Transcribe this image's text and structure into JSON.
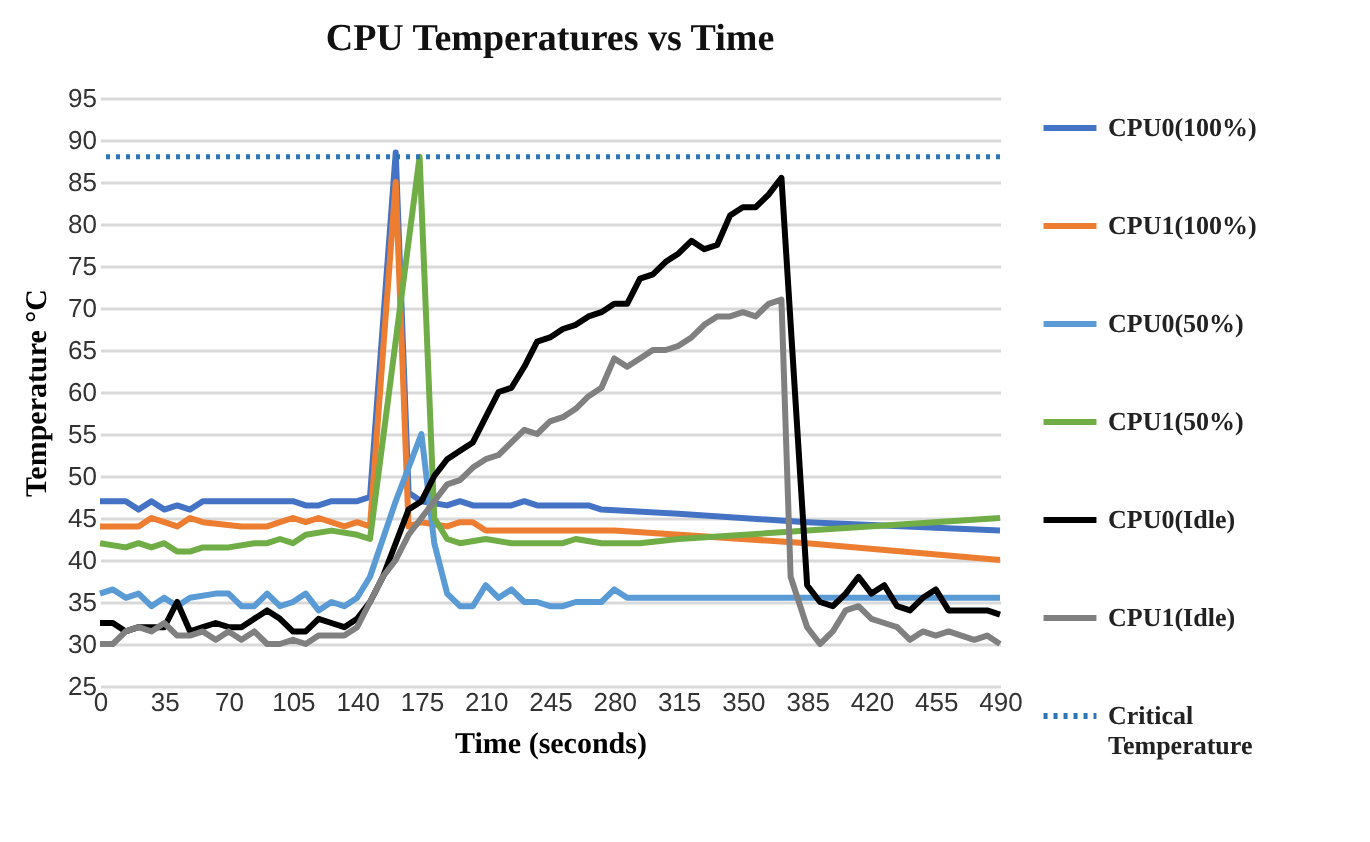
{
  "chart_data": {
    "type": "line",
    "title": "CPU Temperatures vs Time",
    "xlabel": "Time (seconds)",
    "ylabel": "Temperature °C",
    "xlim": [
      0,
      490
    ],
    "xticks": [
      0,
      35,
      70,
      105,
      140,
      175,
      210,
      245,
      280,
      315,
      350,
      385,
      420,
      455,
      490
    ],
    "ylim": [
      25,
      95
    ],
    "yticks": [
      25,
      30,
      35,
      40,
      45,
      50,
      55,
      60,
      65,
      70,
      75,
      80,
      85,
      90,
      95
    ],
    "grid": "y",
    "legend": "right",
    "marker": "none",
    "line_style": "solid",
    "series": [
      {
        "name": "CPU0(100%)",
        "color": "#4472c4",
        "x": [
          0,
          14,
          21,
          28,
          35,
          42,
          49,
          56,
          105,
          112,
          119,
          126,
          140,
          147,
          161,
          168,
          175,
          189,
          196,
          203,
          224,
          231,
          238,
          266,
          273,
          315,
          385,
          490
        ],
        "values": [
          47,
          47,
          46,
          47,
          46,
          46.5,
          46,
          47,
          47,
          46.5,
          46.5,
          47,
          47,
          47.5,
          88.5,
          48,
          47,
          46.5,
          47,
          46.5,
          46.5,
          47,
          46.5,
          46.5,
          46,
          45.5,
          44.5,
          43.5
        ]
      },
      {
        "name": "CPU1(100%)",
        "color": "#ed7d31",
        "x": [
          0,
          21,
          28,
          35,
          42,
          49,
          56,
          77,
          91,
          98,
          105,
          112,
          119,
          133,
          140,
          147,
          161,
          168,
          175,
          189,
          196,
          203,
          210,
          280,
          385,
          490
        ],
        "values": [
          44,
          44,
          45,
          44.5,
          44,
          45,
          44.5,
          44,
          44,
          44.5,
          45,
          44.5,
          45,
          44,
          44.5,
          44,
          85,
          44,
          44.5,
          44,
          44.5,
          44.5,
          43.5,
          43.5,
          42,
          40
        ]
      },
      {
        "name": "CPU0(50%)",
        "color": "#5b9bd5",
        "x": [
          0,
          7,
          14,
          21,
          28,
          35,
          42,
          49,
          63,
          70,
          77,
          84,
          91,
          98,
          105,
          112,
          119,
          126,
          133,
          140,
          147,
          161,
          175,
          182,
          189,
          196,
          203,
          210,
          217,
          224,
          231,
          238,
          245,
          252,
          259,
          266,
          273,
          280,
          287,
          490
        ],
        "values": [
          36,
          36.5,
          35.5,
          36,
          34.5,
          35.5,
          34.5,
          35.5,
          36,
          36,
          34.5,
          34.5,
          36,
          34.5,
          35,
          36,
          34,
          35,
          34.5,
          35.5,
          38,
          47,
          55,
          42,
          36,
          34.5,
          34.5,
          37,
          35.5,
          36.5,
          35,
          35,
          34.5,
          34.5,
          35,
          35,
          35,
          36.5,
          35.5,
          35.5
        ]
      },
      {
        "name": "CPU1(50%)",
        "color": "#70ad47",
        "x": [
          0,
          14,
          21,
          28,
          35,
          42,
          49,
          56,
          70,
          84,
          91,
          98,
          105,
          112,
          126,
          140,
          147,
          174,
          182,
          189,
          196,
          210,
          224,
          252,
          259,
          273,
          294,
          315,
          385,
          490
        ],
        "values": [
          42,
          41.5,
          42,
          41.5,
          42,
          41,
          41,
          41.5,
          41.5,
          42,
          42,
          42.5,
          42,
          43,
          43.5,
          43,
          42.5,
          88,
          45,
          42.5,
          42,
          42.5,
          42,
          42,
          42.5,
          42,
          42,
          42.5,
          43.5,
          45
        ]
      },
      {
        "name": "CPU0(Idle)",
        "color": "#000000",
        "x": [
          0,
          7,
          14,
          21,
          28,
          35,
          42,
          49,
          56,
          63,
          70,
          77,
          84,
          91,
          98,
          105,
          112,
          119,
          126,
          133,
          140,
          147,
          154,
          161,
          168,
          175,
          182,
          189,
          196,
          203,
          210,
          217,
          224,
          231,
          238,
          245,
          252,
          259,
          266,
          273,
          280,
          287,
          294,
          301,
          308,
          315,
          322,
          329,
          336,
          343,
          350,
          357,
          364,
          371,
          385,
          392,
          399,
          406,
          413,
          420,
          427,
          434,
          441,
          448,
          455,
          462,
          483,
          490
        ],
        "values": [
          32.5,
          32.5,
          31.5,
          32,
          32,
          32,
          35,
          31.5,
          32,
          32.5,
          32,
          32,
          33,
          34,
          33,
          31.5,
          31.5,
          33,
          32.5,
          32,
          33,
          35,
          38,
          42,
          46,
          47,
          50,
          52,
          53,
          54,
          57,
          60,
          60.5,
          63,
          66,
          66.5,
          67.5,
          68,
          69,
          69.5,
          70.5,
          70.5,
          73.5,
          74,
          75.5,
          76.5,
          78,
          77,
          77.5,
          81,
          82,
          82,
          83.5,
          85.5,
          37,
          35,
          34.5,
          36,
          38,
          36,
          37,
          34.5,
          34,
          35.5,
          36.5,
          34,
          34,
          33.5
        ]
      },
      {
        "name": "CPU1(Idle)",
        "color": "#808080",
        "x": [
          0,
          7,
          14,
          21,
          28,
          35,
          42,
          49,
          56,
          63,
          70,
          77,
          84,
          91,
          98,
          105,
          112,
          119,
          126,
          133,
          140,
          147,
          154,
          161,
          168,
          175,
          182,
          189,
          196,
          203,
          210,
          217,
          224,
          231,
          238,
          245,
          252,
          259,
          266,
          273,
          280,
          287,
          294,
          301,
          308,
          315,
          322,
          329,
          336,
          343,
          350,
          357,
          364,
          371,
          376,
          385,
          392,
          399,
          406,
          413,
          420,
          427,
          434,
          441,
          448,
          455,
          462,
          469,
          476,
          483,
          490
        ],
        "values": [
          30,
          30,
          31.5,
          32,
          31.5,
          32.5,
          31,
          31,
          31.5,
          30.5,
          31.5,
          30.5,
          31.5,
          30,
          30,
          30.5,
          30,
          31,
          31,
          31,
          32,
          35,
          38,
          40,
          43,
          45,
          47,
          49,
          49.5,
          51,
          52,
          52.5,
          54,
          55.5,
          55,
          56.5,
          57,
          58,
          59.5,
          60.5,
          64,
          63,
          64,
          65,
          65,
          65.5,
          66.5,
          68,
          69,
          69,
          69.5,
          69,
          70.5,
          71,
          38,
          32,
          30,
          31.5,
          34,
          34.5,
          33,
          32.5,
          32,
          30.5,
          31.5,
          31,
          31.5,
          31,
          30.5,
          31,
          30
        ]
      }
    ],
    "ref_lines": [
      {
        "axis": "y",
        "value": 88,
        "label": "Critical Temperature",
        "color": "#2e75b6",
        "line_style": "dotted"
      }
    ]
  }
}
